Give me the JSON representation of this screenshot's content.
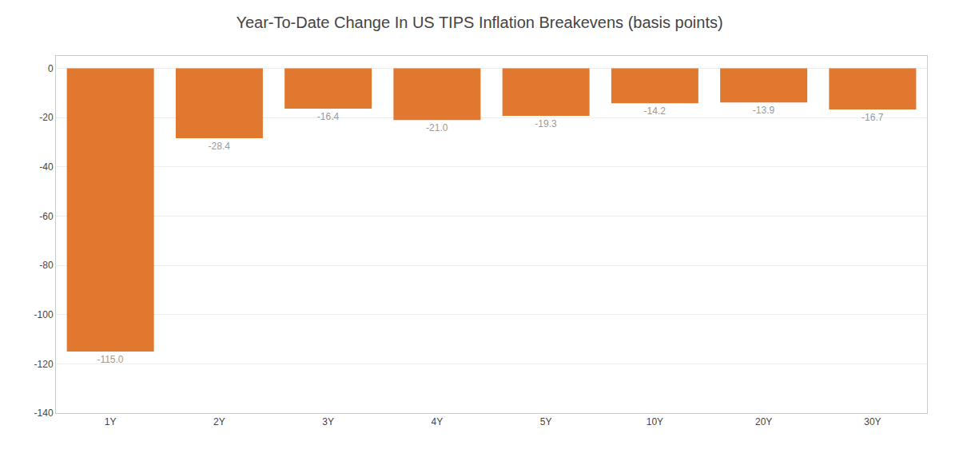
{
  "chart_data": {
    "type": "bar",
    "title": "Year-To-Date Change In US TIPS Inflation Breakevens (basis points)",
    "categories": [
      "1Y",
      "2Y",
      "3Y",
      "4Y",
      "5Y",
      "10Y",
      "20Y",
      "30Y"
    ],
    "values": [
      -115.0,
      -28.4,
      -16.4,
      -21.0,
      -19.3,
      -14.2,
      -13.9,
      -16.7
    ],
    "value_labels": [
      "-115.0",
      "-28.4",
      "-16.4",
      "-21.0",
      "-19.3",
      "-14.2",
      "-13.9",
      "-16.7"
    ],
    "data_labels": true,
    "color": "#E07830",
    "ylim": [
      -140,
      5
    ],
    "yticks": [
      0,
      -20,
      -40,
      -60,
      -80,
      -100,
      -120,
      -140
    ],
    "grid": true
  }
}
